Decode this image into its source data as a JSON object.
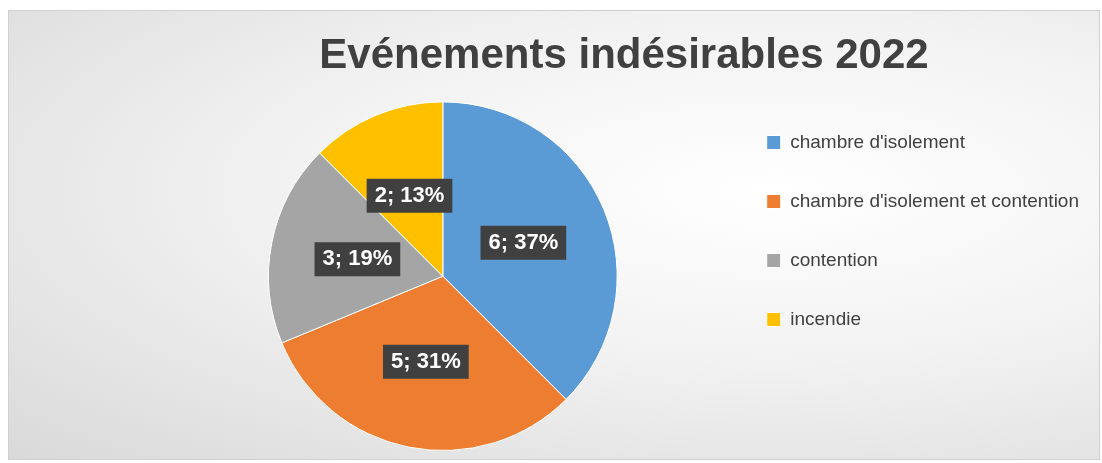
{
  "chart_data": {
    "type": "pie",
    "title": "Evénements indésirables 2022",
    "categories": [
      "chambre d'isolement",
      "chambre d'isolement et contention",
      "contention",
      "incendie"
    ],
    "values": [
      6,
      5,
      3,
      2
    ],
    "colors": [
      "#5b9bd5",
      "#ed7d31",
      "#a5a5a5",
      "#ffc000"
    ],
    "value_labels": [
      "6; 37%",
      "5; 31%",
      "3; 19%",
      "2; 13%"
    ],
    "legend": "right"
  }
}
